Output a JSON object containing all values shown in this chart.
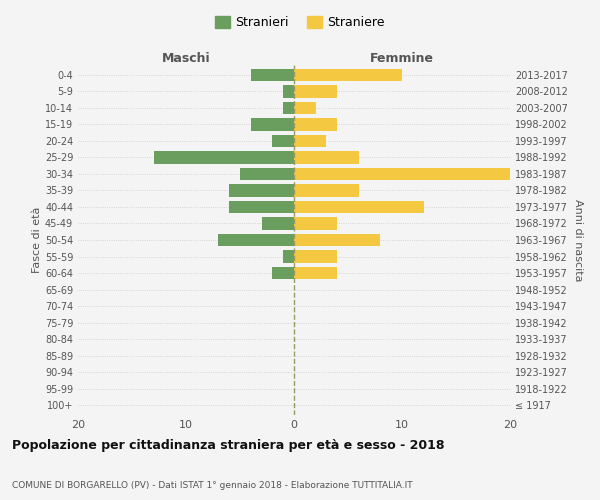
{
  "age_groups": [
    "100+",
    "95-99",
    "90-94",
    "85-89",
    "80-84",
    "75-79",
    "70-74",
    "65-69",
    "60-64",
    "55-59",
    "50-54",
    "45-49",
    "40-44",
    "35-39",
    "30-34",
    "25-29",
    "20-24",
    "15-19",
    "10-14",
    "5-9",
    "0-4"
  ],
  "birth_years": [
    "≤ 1917",
    "1918-1922",
    "1923-1927",
    "1928-1932",
    "1933-1937",
    "1938-1942",
    "1943-1947",
    "1948-1952",
    "1953-1957",
    "1958-1962",
    "1963-1967",
    "1968-1972",
    "1973-1977",
    "1978-1982",
    "1983-1987",
    "1988-1992",
    "1993-1997",
    "1998-2002",
    "2003-2007",
    "2008-2012",
    "2013-2017"
  ],
  "maschi": [
    0,
    0,
    0,
    0,
    0,
    0,
    0,
    0,
    2,
    1,
    7,
    3,
    6,
    6,
    5,
    13,
    2,
    4,
    1,
    1,
    4
  ],
  "femmine": [
    0,
    0,
    0,
    0,
    0,
    0,
    0,
    0,
    4,
    4,
    8,
    4,
    12,
    6,
    20,
    6,
    3,
    4,
    2,
    4,
    10
  ],
  "color_maschi": "#6a9e5e",
  "color_femmine": "#f5c842",
  "xlim": 20,
  "title": "Popolazione per cittadinanza straniera per età e sesso - 2018",
  "subtitle": "COMUNE DI BORGARELLO (PV) - Dati ISTAT 1° gennaio 2018 - Elaborazione TUTTITALIA.IT",
  "ylabel_left": "Fasce di età",
  "ylabel_right": "Anni di nascita",
  "label_maschi": "Stranieri",
  "label_femmine": "Straniere",
  "maschi_header": "Maschi",
  "femmine_header": "Femmine",
  "background_color": "#f4f4f4",
  "bar_height": 0.75
}
